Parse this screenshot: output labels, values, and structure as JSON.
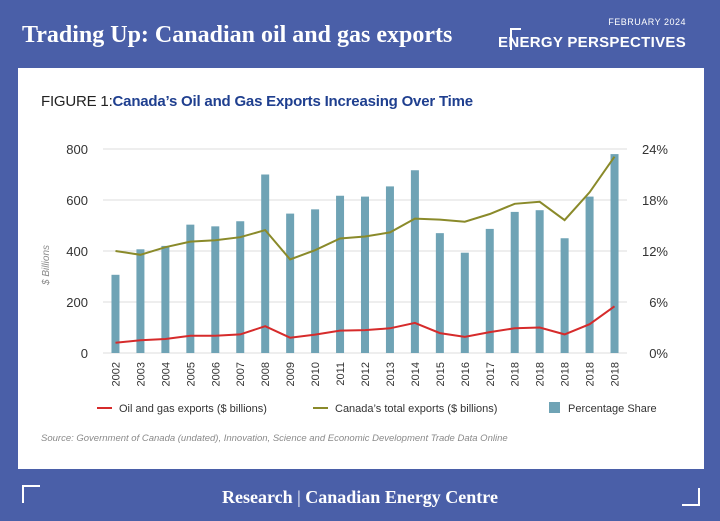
{
  "header": {
    "title": "Trading Up: Canadian oil and gas exports",
    "date": "FEBRUARY 2024",
    "brand": "ENERGY PERSPECTIVES"
  },
  "figure": {
    "label": "FIGURE 1:",
    "title": "Canada’s Oil and Gas Exports Increasing Over Time"
  },
  "source": "Source: Government of Canada (undated), Innovation, Science and Economic Development Trade Data Online",
  "footer": {
    "left": "Research",
    "separator": "|",
    "right": "Canadian Energy Centre"
  },
  "colors": {
    "bar": "#6fa3b5",
    "oil_line": "#d62b2b",
    "total_line": "#8a8a2a",
    "brand": "#4a5fa8"
  },
  "chart_data": {
    "type": "bar",
    "title": "Canada’s Oil and Gas Exports Increasing Over Time",
    "categories": [
      "2002",
      "2003",
      "2004",
      "2005",
      "2006",
      "2007",
      "2008",
      "2009",
      "2010",
      "2011",
      "2012",
      "2013",
      "2014",
      "2015",
      "2016",
      "2017",
      "2018",
      "2018",
      "2018",
      "2018",
      "2018"
    ],
    "ylabel": "$ Billions",
    "ylim": [
      0,
      800
    ],
    "yticks": [
      "0",
      "200",
      "400",
      "600",
      "800"
    ],
    "y2lim": [
      0,
      24
    ],
    "y2ticks": [
      "0%",
      "6%",
      "12%",
      "18%",
      "24%"
    ],
    "grid": "horizontal",
    "legend_position": "bottom",
    "series": [
      {
        "name": "Oil and gas exports ($ billions)",
        "type": "line",
        "axis": "left",
        "values": [
          40,
          50,
          55,
          68,
          68,
          73,
          105,
          60,
          72,
          88,
          90,
          97,
          118,
          78,
          63,
          82,
          97,
          100,
          73,
          113,
          183
        ]
      },
      {
        "name": "Canada’s total exports ($ billions)",
        "type": "line",
        "axis": "left",
        "values": [
          400,
          385,
          415,
          437,
          442,
          454,
          482,
          367,
          403,
          449,
          457,
          473,
          527,
          523,
          515,
          545,
          585,
          593,
          521,
          630,
          770
        ]
      },
      {
        "name": "Percentage Share",
        "type": "bar",
        "axis": "right",
        "values": [
          9.2,
          12.2,
          12.6,
          15.1,
          14.9,
          15.5,
          21.0,
          16.4,
          16.9,
          18.5,
          18.4,
          19.6,
          21.5,
          14.1,
          11.8,
          14.6,
          16.6,
          16.8,
          13.5,
          18.4,
          23.4
        ]
      }
    ]
  }
}
